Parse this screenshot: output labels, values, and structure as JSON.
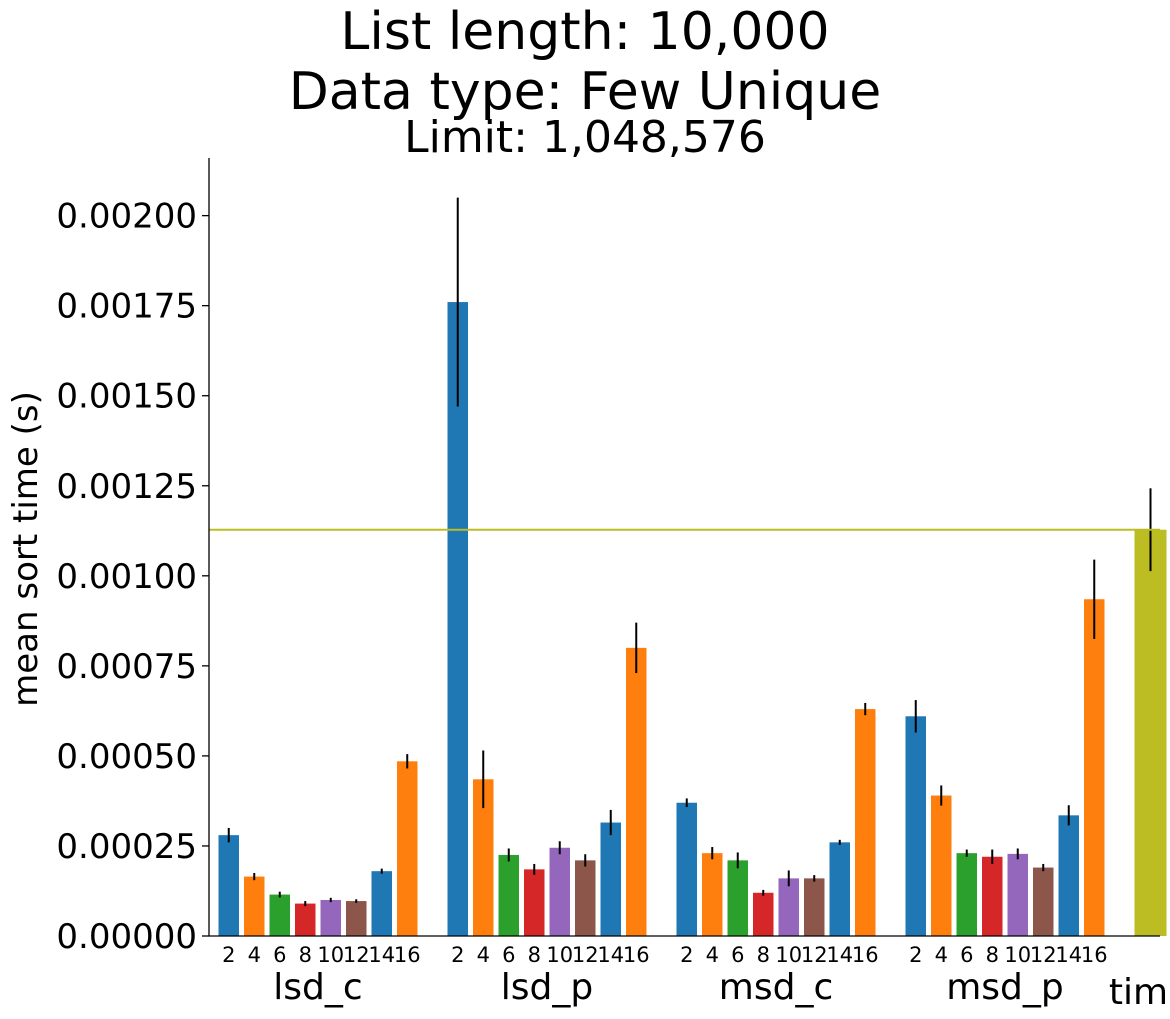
{
  "chart_data": {
    "type": "bar",
    "title": "List length: 10,000",
    "subtitle": "Data type: Few Unique",
    "subtitle2": "Limit: 1,048,576",
    "ylabel": "mean sort time (s)",
    "xlabel": "",
    "ylim": [
      0,
      0.00216
    ],
    "yticks": [
      0.0,
      0.00025,
      0.0005,
      0.00075,
      0.001,
      0.00125,
      0.0015,
      0.00175,
      0.002
    ],
    "ytick_labels": [
      "0.00000",
      "0.00025",
      "0.00050",
      "0.00075",
      "0.00100",
      "0.00125",
      "0.00150",
      "0.00175",
      "0.00200"
    ],
    "grid": false,
    "reference_line": {
      "value": 0.001128,
      "color": "#bcbd22"
    },
    "colors": [
      "#1f77b4",
      "#ff7f0e",
      "#2ca02c",
      "#d62728",
      "#9467bd",
      "#8c564b",
      "#1f77b4",
      "#ff7f0e"
    ],
    "bucket_labels": [
      "2",
      "4",
      "6",
      "8",
      "10",
      "12",
      "14",
      "16"
    ],
    "groups": [
      {
        "name": "lsd_c",
        "values": [
          0.00028,
          0.000165,
          0.000115,
          9e-05,
          0.0001,
          9.7e-05,
          0.00018,
          0.000485
        ],
        "errors": [
          2e-05,
          1e-05,
          8e-06,
          7e-06,
          6e-06,
          5e-06,
          7e-06,
          2e-05
        ]
      },
      {
        "name": "lsd_p",
        "values": [
          0.00176,
          0.000435,
          0.000225,
          0.000185,
          0.000245,
          0.00021,
          0.000315,
          0.0008
        ],
        "errors": [
          0.00029,
          8e-05,
          1.8e-05,
          1.5e-05,
          1.8e-05,
          1.7e-05,
          3.5e-05,
          7e-05
        ]
      },
      {
        "name": "msd_c",
        "values": [
          0.00037,
          0.00023,
          0.00021,
          0.00012,
          0.00016,
          0.00016,
          0.00026,
          0.00063
        ],
        "errors": [
          1.2e-05,
          1.7e-05,
          2.2e-05,
          8e-06,
          2.2e-05,
          9e-06,
          7e-06,
          1.7e-05
        ]
      },
      {
        "name": "msd_p",
        "values": [
          0.00061,
          0.00039,
          0.00023,
          0.00022,
          0.000228,
          0.00019,
          0.000335,
          0.000935
        ],
        "errors": [
          4.5e-05,
          2.8e-05,
          1e-05,
          2e-05,
          1.5e-05,
          1e-05,
          2.8e-05,
          0.00011
        ]
      },
      {
        "name": "tim",
        "values": [
          0.001128
        ],
        "errors": [
          0.000115
        ],
        "colors": [
          "#bcbd22"
        ]
      }
    ]
  }
}
